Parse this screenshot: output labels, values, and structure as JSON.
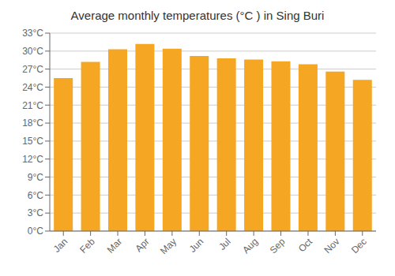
{
  "chart_data": {
    "type": "bar",
    "title": "Average monthly temperatures (°C ) in Sing Buri",
    "categories": [
      "Jan",
      "Feb",
      "Mar",
      "Apr",
      "May",
      "Jun",
      "Jul",
      "Aug",
      "Sep",
      "Oct",
      "Nov",
      "Dec"
    ],
    "values": [
      25.5,
      28.2,
      30.3,
      31.2,
      30.4,
      29.2,
      28.8,
      28.6,
      28.3,
      27.8,
      26.6,
      25.2
    ],
    "color": "#F5A623",
    "ylim": [
      0,
      33
    ],
    "yticks": [
      {
        "value": 0,
        "label": "0°C"
      },
      {
        "value": 3,
        "label": "3°C"
      },
      {
        "value": 6,
        "label": "6°C"
      },
      {
        "value": 9,
        "label": "9°C"
      },
      {
        "value": 12,
        "label": "12°C"
      },
      {
        "value": 15,
        "label": "15°C"
      },
      {
        "value": 18,
        "label": "18°C"
      },
      {
        "value": 21,
        "label": "21°C"
      },
      {
        "value": 24,
        "label": "24°C"
      },
      {
        "value": 27,
        "label": "27°C"
      },
      {
        "value": 30,
        "label": "30°C"
      },
      {
        "value": 33,
        "label": "33°C"
      }
    ],
    "grid": true
  }
}
